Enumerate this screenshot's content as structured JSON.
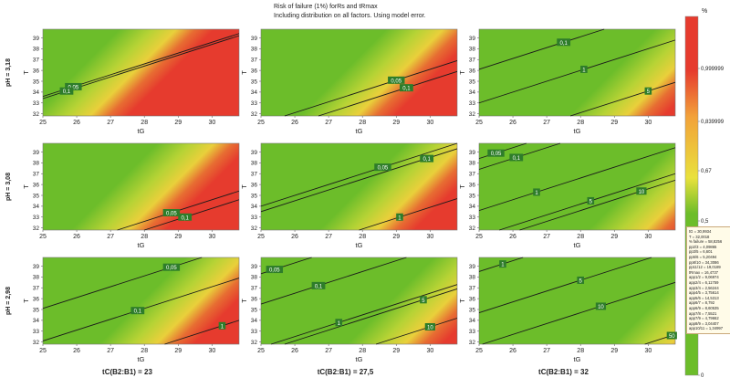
{
  "header": {
    "title_line1": "Risk of failure (1%) forRs and tRmax",
    "title_line2": "Including distribution on all factors. Using model error."
  },
  "chart_data": {
    "type": "heatmap",
    "grid": {
      "rows": 3,
      "cols": 3
    },
    "x_label": "tG",
    "y_label": "T",
    "x_ticks": [
      25,
      26,
      27,
      28,
      29,
      30
    ],
    "y_ticks": [
      32,
      33,
      34,
      35,
      36,
      37,
      38,
      39
    ],
    "xlim": [
      25,
      30.8
    ],
    "ylim": [
      31.8,
      39.8
    ],
    "row_labels": [
      "pH = 3,18",
      "pH = 3,08",
      "pH = 2,98"
    ],
    "col_labels": [
      "tC(B2:B1) = 23",
      "tC(B2:B1) = 27,5",
      "tC(B2:B1) = 32"
    ],
    "colorscale": {
      "title": "%",
      "ticks": [
        "0,999999",
        "0,839999",
        "0,67",
        "0,5",
        "0"
      ],
      "colors": {
        "low": "#6cbd2a",
        "mid": "#e9e13c",
        "high": "#e63b2e"
      }
    },
    "panels": [
      {
        "row": 0,
        "col": 0,
        "risk_line_offset": 9.5,
        "contours": [
          "0,05",
          "0,1"
        ],
        "contour_label_pos": [
          [
            25.9,
            34.5
          ],
          [
            25.7,
            34.1
          ]
        ]
      },
      {
        "row": 0,
        "col": 1,
        "risk_line_offset": 5.0,
        "contours": [
          "0,05",
          "0,1"
        ],
        "contour_label_pos": [
          [
            29.0,
            35.1
          ],
          [
            29.3,
            34.4
          ]
        ]
      },
      {
        "row": 0,
        "col": 2,
        "risk_line_offset": 0.3,
        "contours": [
          "0,1",
          "1",
          "5"
        ],
        "contour_label_pos": [
          [
            27.5,
            38.6
          ],
          [
            28.1,
            36.1
          ],
          [
            30.0,
            34.1
          ]
        ]
      },
      {
        "row": 1,
        "col": 0,
        "risk_line_offset": 6.0,
        "contours": [
          "0,05",
          "0,1"
        ],
        "contour_label_pos": [
          [
            28.8,
            33.4
          ],
          [
            29.2,
            33.0
          ]
        ]
      },
      {
        "row": 1,
        "col": 1,
        "risk_line_offset": 3.2,
        "contours": [
          "0,05",
          "0,1",
          "1"
        ],
        "contour_label_pos": [
          [
            28.6,
            37.6
          ],
          [
            29.9,
            38.4
          ],
          [
            29.1,
            33.0
          ]
        ]
      },
      {
        "row": 1,
        "col": 2,
        "risk_line_offset": -1.5,
        "contours": [
          "0,05",
          "0,1",
          "1",
          "5",
          "10"
        ],
        "contour_label_pos": [
          [
            25.5,
            38.9
          ],
          [
            26.1,
            38.5
          ],
          [
            26.7,
            35.3
          ],
          [
            28.3,
            34.5
          ],
          [
            29.8,
            35.4
          ]
        ]
      },
      {
        "row": 2,
        "col": 0,
        "risk_line_offset": 3.4,
        "contours": [
          "0,05",
          "0,1",
          "1"
        ],
        "contour_label_pos": [
          [
            28.8,
            38.9
          ],
          [
            27.8,
            34.9
          ],
          [
            30.3,
            33.5
          ]
        ]
      },
      {
        "row": 2,
        "col": 1,
        "risk_line_offset": 0.6,
        "contours": [
          "0,05",
          "0,1",
          "1",
          "5",
          "10"
        ],
        "contour_label_pos": [
          [
            25.4,
            38.7
          ],
          [
            26.7,
            37.2
          ],
          [
            27.3,
            33.8
          ],
          [
            29.8,
            35.9
          ],
          [
            30.0,
            33.4
          ]
        ]
      },
      {
        "row": 2,
        "col": 2,
        "risk_line_offset": -3.8,
        "contours": [
          "1",
          "5",
          "10",
          "50"
        ],
        "contour_label_pos": [
          [
            25.7,
            39.2
          ],
          [
            28.0,
            37.7
          ],
          [
            28.6,
            35.3
          ],
          [
            30.7,
            32.6
          ]
        ]
      }
    ]
  },
  "readout": [
    "tG = 30,9934",
    "T = 32,0018",
    "% failure = 58,8256",
    "pp2/3 = 4,09865",
    "pp3/5 = 6,601",
    "pp5/6 = 5,20494",
    "pp8/10 = 34,3086",
    "pp11/12 = 19,0189",
    "tRmax = 16,4737",
    "app1/2 = 9,06974",
    "app2/4 = 6,11759",
    "app3/4 = 2,56244",
    "app4/5 = 3,75614",
    "app5/6 = 14,5313",
    "app6/7 = 8,792",
    "app6/9 = 8,60535",
    "app7/8 = 7,5521",
    "app7/9 = 4,79662",
    "app8/9 = 3,04407",
    "app10/11 = 1,34997"
  ]
}
